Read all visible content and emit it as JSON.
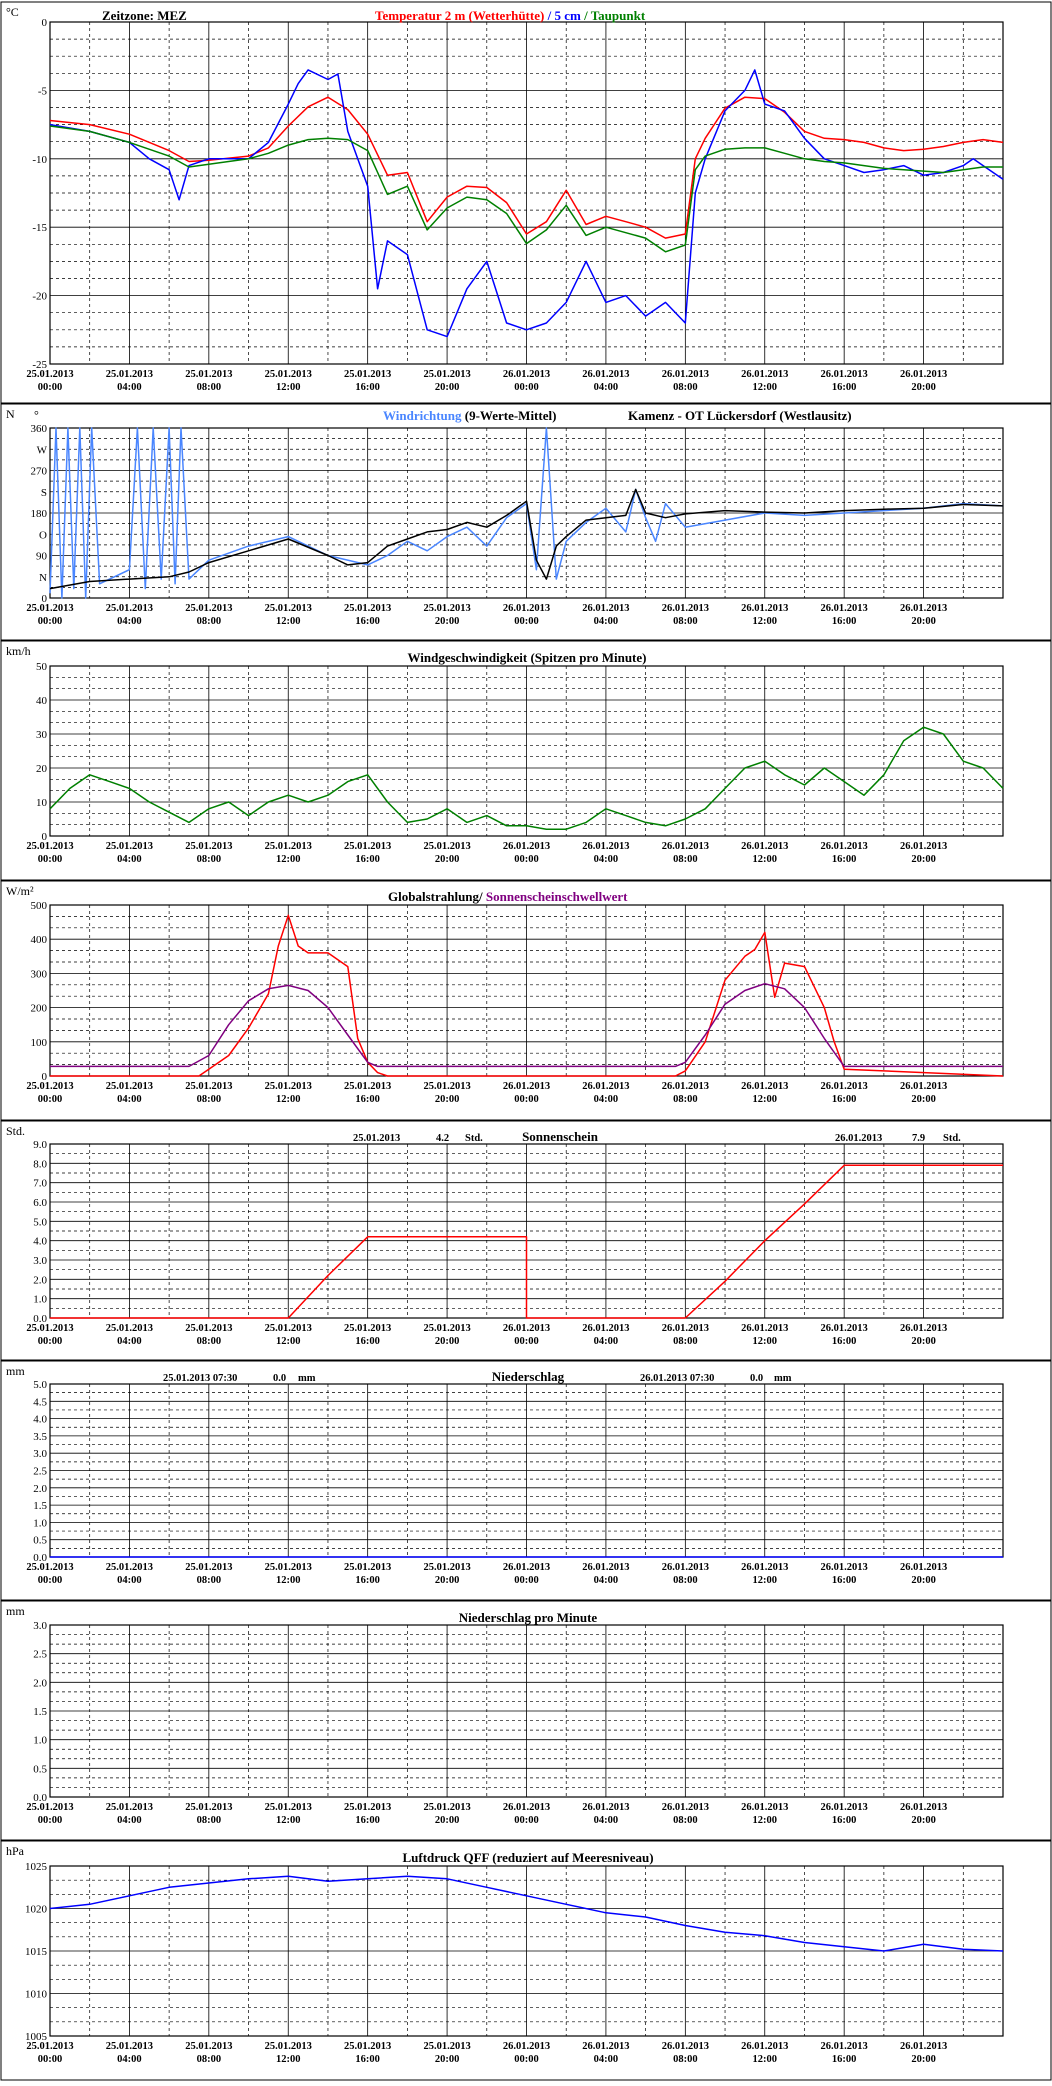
{
  "page": {
    "station_title": "Kamenz - OT Lückersdorf (Westlausitz)",
    "timezone_label": "Zeitzone: MEZ"
  },
  "time_axis": {
    "tick_dates": [
      "25.01.2013",
      "25.01.2013",
      "25.01.2013",
      "25.01.2013",
      "25.01.2013",
      "25.01.2013",
      "26.01.2013",
      "26.01.2013",
      "26.01.2013",
      "26.01.2013",
      "26.01.2013",
      "26.01.2013"
    ],
    "tick_times": [
      "00:00",
      "04:00",
      "08:00",
      "12:00",
      "16:00",
      "20:00",
      "00:00",
      "04:00",
      "08:00",
      "12:00",
      "16:00",
      "20:00"
    ],
    "range_hours": [
      0,
      48
    ]
  },
  "colors": {
    "background": "#ffffff",
    "axis": "#000000",
    "grid": "#000000",
    "temp_2m": "#ff0000",
    "temp_5cm": "#0000ff",
    "dewpoint": "#008000",
    "wind_dir_raw": "#4a86ff",
    "wind_dir_avg": "#000000",
    "wind_speed": "#008000",
    "radiation": "#ff0000",
    "sunshine_threshold": "#800080",
    "sunshine": "#ff0000",
    "precip": "#0000ff",
    "pressure": "#0000ff"
  },
  "chart_data": [
    {
      "id": "temperature",
      "type": "line",
      "unit_label": "°C",
      "title_parts": [
        "Temperatur 2 m (Wetterhütte)",
        " / ",
        "5 cm",
        " / ",
        "Taupunkt"
      ],
      "yticks": [
        "0",
        "-5",
        "-10",
        "-15",
        "-20",
        "-25"
      ],
      "ylim": [
        -25,
        0
      ],
      "grid": true,
      "series": [
        {
          "name": "Temperatur 2 m (Wetterhütte)",
          "color": "#ff0000",
          "x": [
            0,
            2,
            4,
            6,
            7,
            8,
            10,
            11,
            12,
            13,
            14,
            15,
            16,
            17,
            18,
            19,
            20,
            21,
            22,
            23,
            24,
            25,
            26,
            27,
            28,
            29,
            30,
            31,
            32,
            32.5,
            33,
            34,
            35,
            36,
            37,
            38,
            39,
            40,
            41,
            42,
            43,
            44,
            45,
            46,
            47,
            48
          ],
          "y": [
            -7.2,
            -7.5,
            -8.2,
            -9.4,
            -10.2,
            -10.1,
            -9.8,
            -9.2,
            -7.6,
            -6.2,
            -5.5,
            -6.4,
            -8.2,
            -11.2,
            -11.0,
            -14.6,
            -12.8,
            -12.0,
            -12.1,
            -13.2,
            -15.5,
            -14.6,
            -12.3,
            -14.8,
            -14.2,
            -14.6,
            -15.0,
            -15.8,
            -15.5,
            -10.0,
            -8.5,
            -6.3,
            -5.5,
            -5.6,
            -6.6,
            -8.0,
            -8.5,
            -8.6,
            -8.8,
            -9.2,
            -9.4,
            -9.3,
            -9.1,
            -8.8,
            -8.6,
            -8.8
          ]
        },
        {
          "name": "5 cm",
          "color": "#0000ff",
          "x": [
            0,
            2,
            4,
            5,
            6,
            6.5,
            7,
            8,
            10,
            11,
            12,
            12.5,
            13,
            14,
            14.5,
            15,
            16,
            16.5,
            17,
            18,
            19,
            20,
            21,
            22,
            23,
            24,
            25,
            26,
            27,
            28,
            29,
            30,
            31,
            32,
            32.5,
            33,
            34,
            35,
            35.5,
            36,
            37,
            38,
            39,
            40,
            41,
            42,
            43,
            44,
            45,
            46,
            46.5,
            47,
            48
          ],
          "y": [
            -7.5,
            -8.0,
            -8.8,
            -10.0,
            -10.8,
            -13.0,
            -10.5,
            -10.0,
            -10.0,
            -8.8,
            -6.0,
            -4.5,
            -3.5,
            -4.2,
            -3.8,
            -8.0,
            -12.0,
            -19.5,
            -16.0,
            -17.0,
            -22.5,
            -23.0,
            -19.5,
            -17.5,
            -22.0,
            -22.5,
            -22.0,
            -20.5,
            -17.5,
            -20.5,
            -20.0,
            -21.5,
            -20.5,
            -22.0,
            -12.5,
            -10.0,
            -6.5,
            -5.0,
            -3.5,
            -6.0,
            -6.5,
            -8.5,
            -10.0,
            -10.5,
            -11.0,
            -10.8,
            -10.5,
            -11.2,
            -11.0,
            -10.5,
            -10.0,
            -10.5,
            -11.5
          ]
        },
        {
          "name": "Taupunkt",
          "color": "#008000",
          "x": [
            0,
            2,
            4,
            6,
            7,
            8,
            10,
            11,
            12,
            13,
            14,
            15,
            16,
            17,
            18,
            19,
            20,
            21,
            22,
            23,
            24,
            25,
            26,
            27,
            28,
            29,
            30,
            31,
            32,
            32.5,
            33,
            34,
            35,
            36,
            37,
            38,
            39,
            40,
            41,
            42,
            43,
            44,
            45,
            46,
            47,
            48
          ],
          "y": [
            -7.6,
            -8.0,
            -8.8,
            -9.8,
            -10.6,
            -10.4,
            -10.0,
            -9.6,
            -9.0,
            -8.6,
            -8.5,
            -8.6,
            -9.4,
            -12.6,
            -12.0,
            -15.2,
            -13.6,
            -12.8,
            -13.0,
            -14.0,
            -16.2,
            -15.2,
            -13.4,
            -15.6,
            -15.0,
            -15.4,
            -15.8,
            -16.8,
            -16.3,
            -10.8,
            -9.8,
            -9.3,
            -9.2,
            -9.2,
            -9.6,
            -10.0,
            -10.2,
            -10.3,
            -10.5,
            -10.7,
            -10.8,
            -10.9,
            -11.0,
            -10.8,
            -10.6,
            -10.6
          ]
        }
      ]
    },
    {
      "id": "wind_direction",
      "type": "line",
      "unit_label": "N",
      "title_parts": [
        "Windrichtung",
        " (9-Werte-Mittel)"
      ],
      "yticks": [
        "360",
        "W",
        "270",
        "S",
        "180",
        "O",
        "90",
        "N",
        "0"
      ],
      "ylim": [
        0,
        360
      ],
      "grid": true,
      "series": [
        {
          "name": "Windrichtung",
          "color": "#4a86ff",
          "x": [
            0,
            0.3,
            0.6,
            0.9,
            1.2,
            1.5,
            1.8,
            2.1,
            2.5,
            3,
            4,
            4.4,
            4.8,
            5.2,
            5.6,
            6,
            6.3,
            6.6,
            7,
            8,
            10,
            12,
            14,
            16,
            17,
            18,
            19,
            20,
            21,
            22,
            23,
            24,
            24.5,
            25,
            25.5,
            26,
            27,
            28,
            29,
            29.5,
            30,
            30.5,
            31,
            32,
            34,
            36,
            38,
            40,
            42,
            44,
            46,
            48
          ],
          "y": [
            10,
            360,
            0,
            360,
            20,
            360,
            0,
            360,
            30,
            40,
            60,
            360,
            20,
            360,
            40,
            360,
            30,
            360,
            40,
            80,
            110,
            130,
            90,
            70,
            90,
            120,
            100,
            130,
            150,
            110,
            170,
            200,
            60,
            360,
            40,
            120,
            160,
            190,
            140,
            230,
            170,
            120,
            200,
            150,
            165,
            180,
            175,
            180,
            185,
            190,
            200,
            195
          ]
        },
        {
          "name": "9-Werte-Mittel",
          "color": "#000000",
          "x": [
            0,
            2,
            4,
            6,
            7,
            8,
            10,
            12,
            14,
            15,
            16,
            17,
            18,
            19,
            20,
            21,
            22,
            23,
            24,
            24.5,
            25,
            25.5,
            26,
            27,
            28,
            29,
            29.5,
            30,
            31,
            32,
            34,
            36,
            38,
            40,
            42,
            44,
            46,
            48
          ],
          "y": [
            20,
            35,
            40,
            45,
            55,
            75,
            100,
            125,
            90,
            70,
            75,
            110,
            125,
            140,
            145,
            160,
            150,
            175,
            205,
            80,
            40,
            110,
            130,
            165,
            170,
            175,
            230,
            180,
            170,
            178,
            185,
            182,
            180,
            185,
            188,
            190,
            198,
            195
          ]
        }
      ]
    },
    {
      "id": "wind_speed",
      "type": "line",
      "unit_label": "km/h",
      "title_parts": [
        "Windgeschwindigkeit (Spitzen pro Minute)"
      ],
      "yticks": [
        "50",
        "40",
        "30",
        "20",
        "10",
        "0"
      ],
      "ylim": [
        0,
        50
      ],
      "grid": true,
      "series": [
        {
          "name": "Windgeschwindigkeit",
          "color": "#008000",
          "x": [
            0,
            1,
            2,
            3,
            4,
            5,
            6,
            7,
            8,
            9,
            10,
            11,
            12,
            13,
            14,
            15,
            16,
            17,
            18,
            19,
            20,
            21,
            22,
            23,
            24,
            25,
            26,
            27,
            28,
            29,
            30,
            31,
            32,
            33,
            34,
            35,
            36,
            37,
            38,
            39,
            40,
            41,
            42,
            43,
            44,
            45,
            46,
            47,
            48
          ],
          "y": [
            8,
            14,
            18,
            16,
            14,
            10,
            7,
            4,
            8,
            10,
            6,
            10,
            12,
            10,
            12,
            16,
            18,
            10,
            4,
            5,
            8,
            4,
            6,
            3,
            3,
            2,
            2,
            4,
            8,
            6,
            4,
            3,
            5,
            8,
            14,
            20,
            22,
            18,
            15,
            20,
            16,
            12,
            18,
            28,
            32,
            30,
            22,
            20,
            14
          ]
        }
      ]
    },
    {
      "id": "radiation",
      "type": "line",
      "unit_label": "W/m²",
      "title_parts": [
        "Globalstrahlung",
        "/ ",
        "Sonnenscheinschwellwert"
      ],
      "yticks": [
        "500",
        "400",
        "300",
        "200",
        "100",
        "0"
      ],
      "ylim": [
        0,
        500
      ],
      "grid": true,
      "series": [
        {
          "name": "Globalstrahlung",
          "color": "#ff0000",
          "x": [
            0,
            7.5,
            8,
            9,
            10,
            11,
            11.5,
            12,
            12.5,
            13,
            14,
            15,
            15.5,
            16,
            16.5,
            17,
            31.5,
            32,
            33,
            34,
            35,
            35.5,
            36,
            36.5,
            37,
            38,
            39,
            39.5,
            40,
            48
          ],
          "y": [
            0,
            0,
            20,
            60,
            140,
            240,
            380,
            470,
            380,
            360,
            360,
            320,
            110,
            40,
            10,
            0,
            0,
            15,
            100,
            280,
            350,
            370,
            420,
            230,
            330,
            320,
            200,
            100,
            20,
            0
          ]
        },
        {
          "name": "Sonnenscheinschwellwert",
          "color": "#800080",
          "x": [
            0,
            7,
            8,
            9,
            10,
            11,
            12,
            13,
            14,
            15,
            16,
            16.5,
            31.5,
            32,
            33,
            34,
            35,
            36,
            37,
            38,
            39,
            40,
            48
          ],
          "y": [
            28,
            28,
            60,
            150,
            220,
            255,
            265,
            250,
            200,
            120,
            40,
            28,
            28,
            40,
            120,
            210,
            250,
            270,
            255,
            200,
            110,
            28,
            28
          ]
        }
      ]
    },
    {
      "id": "sunshine",
      "type": "line",
      "unit_label": "Std.",
      "title_parts": [
        "Sonnenschein"
      ],
      "annotations": [
        {
          "date": "25.01.2013",
          "value": "4.2",
          "unit": "Std."
        },
        {
          "date": "26.01.2013",
          "value": "7.9",
          "unit": "Std."
        }
      ],
      "yticks": [
        "9.0",
        "8.0",
        "7.0",
        "6.0",
        "5.0",
        "4.0",
        "3.0",
        "2.0",
        "1.0",
        "0.0"
      ],
      "ylim": [
        0,
        9
      ],
      "grid": true,
      "series": [
        {
          "name": "Sonnenschein",
          "color": "#ff0000",
          "x": [
            0,
            12,
            14,
            16,
            24,
            24,
            32,
            34,
            36,
            38,
            40,
            48
          ],
          "y": [
            0,
            0,
            2.2,
            4.2,
            4.2,
            0,
            0,
            1.9,
            4.0,
            5.9,
            7.9,
            7.9
          ]
        }
      ]
    },
    {
      "id": "precip",
      "type": "line",
      "unit_label": "mm",
      "title_parts": [
        "Niederschlag"
      ],
      "annotations": [
        {
          "date": "25.01.2013 07:30",
          "value": "0.0",
          "unit": "mm"
        },
        {
          "date": "26.01.2013 07:30",
          "value": "0.0",
          "unit": "mm"
        }
      ],
      "yticks": [
        "5.0",
        "4.5",
        "4.0",
        "3.5",
        "3.0",
        "2.5",
        "2.0",
        "1.5",
        "1.0",
        "0.5",
        "0.0"
      ],
      "ylim": [
        0,
        5
      ],
      "grid": true,
      "series": [
        {
          "name": "Niederschlag",
          "color": "#0000ff",
          "x": [
            0,
            48
          ],
          "y": [
            0,
            0
          ]
        }
      ]
    },
    {
      "id": "precip_minute",
      "type": "line",
      "unit_label": "mm",
      "title_parts": [
        "Niederschlag pro Minute"
      ],
      "yticks": [
        "3.0",
        "2.5",
        "2.0",
        "1.5",
        "1.0",
        "0.5",
        "0.0"
      ],
      "ylim": [
        0,
        3
      ],
      "grid": true,
      "series": []
    },
    {
      "id": "pressure",
      "type": "line",
      "unit_label": "hPa",
      "title_parts": [
        "Luftdruck QFF (reduziert auf Meeresniveau)"
      ],
      "yticks": [
        "1025",
        "1020",
        "1015",
        "1010",
        "1005"
      ],
      "ylim": [
        1005,
        1025
      ],
      "grid": true,
      "series": [
        {
          "name": "Luftdruck QFF",
          "color": "#0000ff",
          "x": [
            0,
            2,
            4,
            6,
            8,
            10,
            12,
            14,
            16,
            18,
            20,
            22,
            24,
            26,
            28,
            30,
            32,
            34,
            36,
            38,
            40,
            42,
            44,
            46,
            48
          ],
          "y": [
            1020,
            1020.5,
            1021.5,
            1022.5,
            1023,
            1023.5,
            1023.8,
            1023.2,
            1023.5,
            1023.8,
            1023.5,
            1022.5,
            1021.5,
            1020.5,
            1019.5,
            1019,
            1018,
            1017.2,
            1016.8,
            1016,
            1015.5,
            1015,
            1015.8,
            1015.2,
            1015
          ]
        }
      ]
    }
  ]
}
